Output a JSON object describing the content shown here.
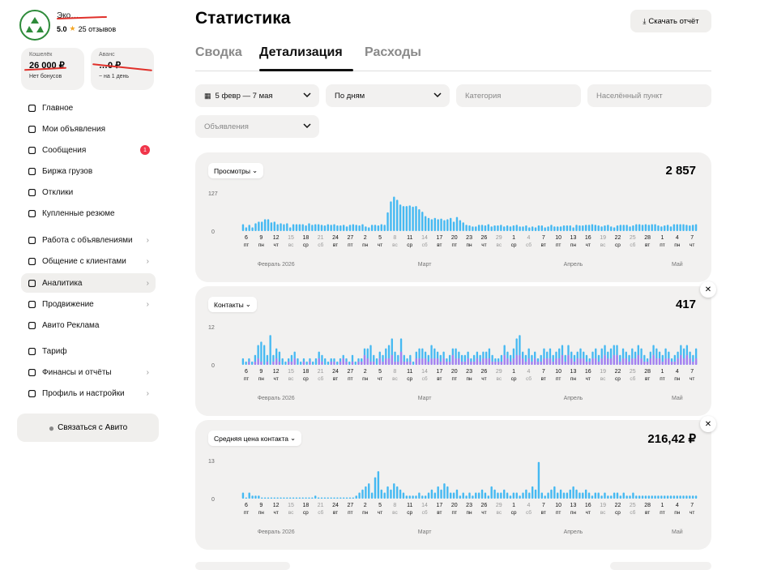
{
  "profile": {
    "name": "Эко…",
    "rating": "5.0",
    "reviews": "25 отзывов"
  },
  "wallets": [
    {
      "title": "Кошелёк",
      "amount": "26 000 ₽",
      "sub": "Нет бонусов"
    },
    {
      "title": "Аванс",
      "amount": "…0 ₽",
      "sub": "~ на 1 день"
    }
  ],
  "nav": [
    {
      "label": "Главное",
      "icon": "grid-icon",
      "chevron": false
    },
    {
      "label": "Мои объявления",
      "icon": "listings-icon",
      "chevron": false
    },
    {
      "label": "Сообщения",
      "icon": "chat-icon",
      "chevron": false,
      "badge": "1"
    },
    {
      "label": "Биржа грузов",
      "icon": "cargo-icon",
      "chevron": false
    },
    {
      "label": "Отклики",
      "icon": "responses-icon",
      "chevron": false
    },
    {
      "label": "Купленные резюме",
      "icon": "resume-icon",
      "chevron": false
    },
    {
      "label": "Работа с объявлениями",
      "icon": "briefcase-icon",
      "chevron": true
    },
    {
      "label": "Общение с клиентами",
      "icon": "clients-icon",
      "chevron": true
    },
    {
      "label": "Аналитика",
      "icon": "analytics-icon",
      "chevron": true,
      "active": true
    },
    {
      "label": "Продвижение",
      "icon": "rocket-icon",
      "chevron": true
    },
    {
      "label": "Авито Реклама",
      "icon": "ads-icon",
      "chevron": false
    },
    {
      "label": "Тариф",
      "icon": "tariff-icon",
      "chevron": false
    },
    {
      "label": "Финансы и отчёты",
      "icon": "finance-icon",
      "chevron": true
    },
    {
      "label": "Профиль и настройки",
      "icon": "profile-icon",
      "chevron": true
    }
  ],
  "contact_button": "Связаться с Авито",
  "page": {
    "title": "Статистика",
    "download": "Скачать отчёт"
  },
  "tabs": [
    "Сводка",
    "Детализация",
    "Расходы"
  ],
  "active_tab": 1,
  "filters": {
    "date": "5 февр — 7 мая",
    "grouping": "По дням",
    "category": "Категория",
    "city": "Населённый пункт",
    "listings": "Объявления"
  },
  "colors": {
    "primary": "#45b9f2",
    "secondary": "#a77ff0"
  },
  "axis": {
    "days": [
      6,
      9,
      12,
      15,
      18,
      21,
      24,
      27,
      2,
      5,
      8,
      11,
      14,
      17,
      20,
      23,
      26,
      29,
      1,
      4,
      7,
      10,
      13,
      16,
      19,
      22,
      25,
      28,
      1,
      4,
      7
    ],
    "weekdays": [
      "пт",
      "пн",
      "чт",
      "вс",
      "ср",
      "сб",
      "вт",
      "пт",
      "пн",
      "чт",
      "вс",
      "ср",
      "сб",
      "вт",
      "пт",
      "пн",
      "чт",
      "вс",
      "ср",
      "сб",
      "вт",
      "пт",
      "пн",
      "чт",
      "вс",
      "ср",
      "сб",
      "вт",
      "пт",
      "пн",
      "чт"
    ],
    "weekend": [
      3,
      5,
      10,
      12,
      17,
      19,
      24,
      26
    ],
    "months": [
      {
        "label": "Февраль 2026",
        "i": 2
      },
      {
        "label": "Март",
        "i": 12
      },
      {
        "label": "Апрель",
        "i": 22
      },
      {
        "label": "Май",
        "i": 29
      }
    ]
  },
  "chart_data": [
    {
      "type": "bar",
      "metric": "Просмотры",
      "total": "2 857",
      "y_ticks": [
        0,
        127
      ],
      "values": [
        22,
        12,
        20,
        12,
        25,
        30,
        30,
        38,
        38,
        28,
        30,
        22,
        25,
        22,
        25,
        12,
        22,
        22,
        22,
        22,
        18,
        25,
        20,
        22,
        22,
        20,
        18,
        22,
        20,
        22,
        18,
        18,
        20,
        15,
        20,
        22,
        20,
        18,
        22,
        15,
        12,
        20,
        20,
        18,
        22,
        20,
        60,
        95,
        110,
        100,
        85,
        80,
        80,
        82,
        78,
        80,
        70,
        62,
        48,
        42,
        38,
        42,
        38,
        40,
        35,
        38,
        42,
        30,
        45,
        35,
        28,
        20,
        18,
        15,
        15,
        20,
        20,
        18,
        22,
        15,
        18,
        18,
        20,
        15,
        18,
        15,
        18,
        20,
        15,
        15,
        18,
        12,
        15,
        12,
        18,
        18,
        12,
        15,
        20,
        15,
        15,
        15,
        18,
        18,
        18,
        12,
        20,
        18,
        18,
        20,
        20,
        22,
        20,
        18,
        15,
        18,
        20,
        15,
        12,
        18,
        20,
        20,
        20,
        15,
        18,
        22,
        22,
        20,
        22,
        20,
        22,
        22,
        18,
        15,
        18,
        20,
        15,
        22,
        22,
        22,
        22,
        20,
        18,
        20,
        22
      ]
    },
    {
      "type": "bar",
      "metric": "Контакты",
      "total": "417",
      "y_ticks": [
        0,
        12
      ],
      "values": [
        2,
        1,
        2,
        1,
        3,
        6,
        7,
        6,
        3,
        9,
        3,
        5,
        4,
        2,
        1,
        2,
        3,
        4,
        2,
        1,
        2,
        1,
        2,
        1,
        2,
        4,
        3,
        2,
        1,
        2,
        2,
        1,
        2,
        3,
        2,
        1,
        3,
        1,
        2,
        2,
        5,
        5,
        6,
        3,
        2,
        4,
        3,
        5,
        6,
        8,
        4,
        3,
        8,
        3,
        2,
        3,
        1,
        4,
        5,
        5,
        4,
        3,
        6,
        5,
        4,
        3,
        4,
        2,
        3,
        5,
        5,
        4,
        3,
        3,
        4,
        2,
        3,
        4,
        3,
        4,
        4,
        5,
        3,
        2,
        2,
        3,
        6,
        4,
        3,
        5,
        8,
        9,
        4,
        3,
        5,
        3,
        4,
        2,
        3,
        5,
        4,
        5,
        3,
        4,
        5,
        6,
        3,
        6,
        4,
        3,
        4,
        5,
        4,
        3,
        2,
        4,
        5,
        3,
        5,
        6,
        4,
        5,
        6,
        6,
        3,
        5,
        4,
        3,
        5,
        4,
        6,
        5,
        3,
        2,
        4,
        6,
        5,
        4,
        3,
        5,
        4,
        2,
        3,
        4,
        6,
        5,
        6,
        4,
        3,
        5
      ],
      "values_purple": [
        0,
        0,
        1,
        0,
        1,
        2,
        1,
        0,
        1,
        0,
        1,
        2,
        1,
        0,
        0,
        1,
        1,
        2,
        0,
        0,
        1,
        0,
        1,
        0,
        0,
        2,
        1,
        0,
        0,
        1,
        1,
        0,
        1,
        2,
        1,
        0,
        1,
        0,
        1,
        1,
        3,
        2,
        1,
        1,
        0,
        2,
        1,
        2,
        2,
        3,
        1,
        1,
        4,
        1,
        1,
        1,
        0,
        2,
        2,
        2,
        2,
        1,
        2,
        2,
        2,
        1,
        2,
        1,
        1,
        3,
        2,
        2,
        1,
        1,
        2,
        1,
        1,
        2,
        1,
        2,
        2,
        2,
        1,
        1,
        1,
        1,
        3,
        2,
        1,
        2,
        3,
        3,
        2,
        1,
        2,
        1,
        2,
        1,
        1,
        2,
        2,
        2,
        1,
        2,
        2,
        3,
        1,
        3,
        2,
        1,
        2,
        2,
        2,
        1,
        1,
        2,
        2,
        1,
        2,
        3,
        2,
        2,
        3,
        3,
        1,
        2,
        2,
        1,
        2,
        2,
        3,
        2,
        1,
        1,
        2,
        3,
        2,
        2,
        1,
        2,
        2,
        1,
        1,
        2,
        3,
        2,
        3,
        2,
        1,
        2
      ]
    },
    {
      "type": "bar",
      "metric": "Средняя цена контакта",
      "total": "216,42 ₽",
      "y_ticks": [
        0,
        13
      ],
      "values": [
        2,
        0,
        2,
        1,
        1,
        1,
        0,
        0,
        0,
        0,
        0,
        0,
        0,
        0,
        0,
        0,
        0,
        0,
        0,
        0,
        0,
        0,
        0,
        1,
        0,
        0,
        0,
        0,
        0,
        0,
        0,
        0,
        0,
        0,
        0,
        0,
        1,
        2,
        3,
        4,
        5,
        2,
        7,
        9,
        3,
        2,
        4,
        3,
        5,
        4,
        3,
        2,
        1,
        1,
        1,
        1,
        2,
        1,
        1,
        2,
        3,
        2,
        4,
        3,
        5,
        4,
        2,
        2,
        3,
        1,
        2,
        1,
        2,
        1,
        2,
        2,
        3,
        2,
        1,
        4,
        3,
        2,
        2,
        3,
        2,
        1,
        2,
        2,
        1,
        2,
        3,
        2,
        4,
        3,
        12,
        2,
        1,
        2,
        3,
        4,
        2,
        3,
        2,
        2,
        3,
        4,
        3,
        2,
        2,
        3,
        2,
        1,
        2,
        2,
        1,
        2,
        1,
        1,
        2,
        2,
        1,
        2,
        1,
        1,
        2,
        1,
        1,
        1,
        1,
        1,
        1,
        1,
        1,
        1,
        1,
        1,
        1,
        1,
        1,
        1,
        1,
        1,
        1,
        1,
        1
      ]
    }
  ],
  "metric_labels": [
    "Просмотры",
    "Контакты",
    "Средняя цена контакта"
  ],
  "totals": [
    "2 857",
    "417",
    "216,42 ₽"
  ]
}
